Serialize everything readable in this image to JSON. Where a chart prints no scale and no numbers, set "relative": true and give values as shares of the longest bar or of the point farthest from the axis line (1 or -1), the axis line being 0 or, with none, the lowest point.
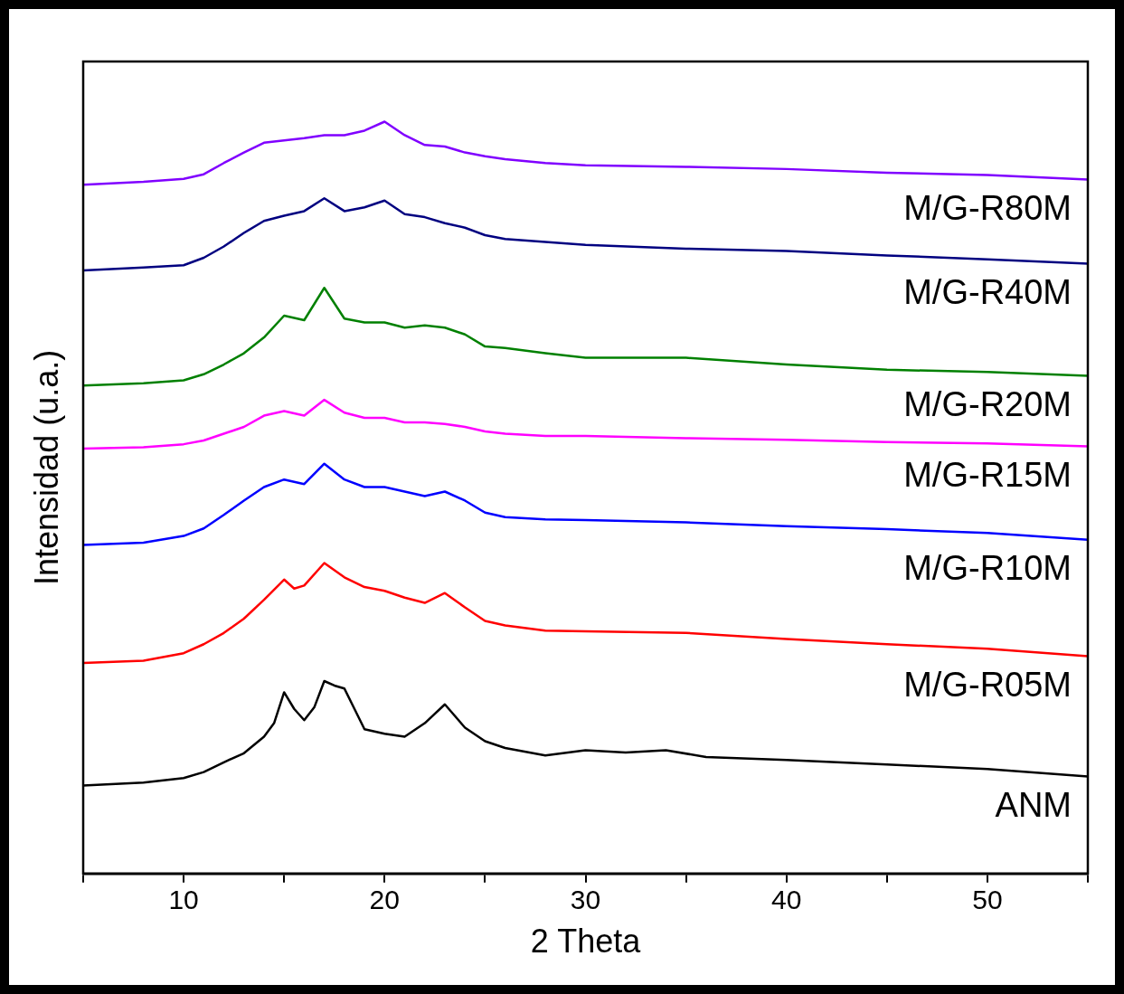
{
  "chart_data": {
    "type": "line",
    "xlabel": "2 Theta",
    "ylabel": "Intensidad (u.a.)",
    "relative": true,
    "xlim": [
      5,
      55
    ],
    "xticks": [
      {
        "value": 5,
        "label": null
      },
      10,
      {
        "value": 15,
        "label": null
      },
      20,
      {
        "value": 25,
        "label": null
      },
      30,
      {
        "value": 35,
        "label": null
      },
      40,
      {
        "value": 45,
        "label": null
      },
      50,
      {
        "value": 55,
        "label": null
      }
    ],
    "tick_labels": "x",
    "grid": false,
    "legend": false,
    "marker": "none",
    "line_style": "solid",
    "series": [
      {
        "name": "ANM",
        "color": "#000000",
        "x": [
          5,
          8,
          10,
          11,
          12,
          13,
          14,
          14.5,
          15,
          15.5,
          16,
          16.5,
          17,
          17.5,
          18,
          18.5,
          19,
          20,
          21,
          22,
          23,
          24,
          25,
          26,
          28,
          30,
          32,
          34,
          36,
          40,
          45,
          50,
          55
        ],
        "values": [
          0.117,
          0.121,
          0.127,
          0.135,
          0.148,
          0.16,
          0.182,
          0.2,
          0.241,
          0.219,
          0.204,
          0.221,
          0.256,
          0.25,
          0.246,
          0.219,
          0.192,
          0.186,
          0.182,
          0.2,
          0.225,
          0.194,
          0.176,
          0.167,
          0.157,
          0.164,
          0.161,
          0.164,
          0.155,
          0.151,
          0.145,
          0.139,
          0.129
        ]
      },
      {
        "name": "M/G-R05M",
        "color": "#ff0000",
        "x": [
          5,
          8,
          10,
          11,
          12,
          13,
          14,
          15,
          15.5,
          16,
          17,
          18,
          19,
          20,
          21,
          22,
          23,
          24,
          25,
          26,
          28,
          30,
          35,
          40,
          45,
          50,
          55
        ],
        "values": [
          0.28,
          0.283,
          0.293,
          0.305,
          0.32,
          0.339,
          0.364,
          0.391,
          0.379,
          0.383,
          0.413,
          0.394,
          0.381,
          0.376,
          0.367,
          0.36,
          0.373,
          0.354,
          0.336,
          0.33,
          0.323,
          0.322,
          0.32,
          0.312,
          0.305,
          0.299,
          0.289
        ]
      },
      {
        "name": "M/G-R10M",
        "color": "#0000ff",
        "x": [
          5,
          8,
          10,
          11,
          12,
          13,
          14,
          15,
          16,
          17,
          18,
          19,
          20,
          21,
          22,
          23,
          24,
          25,
          26,
          28,
          30,
          35,
          40,
          45,
          50,
          55
        ],
        "values": [
          0.437,
          0.44,
          0.449,
          0.459,
          0.477,
          0.496,
          0.514,
          0.524,
          0.518,
          0.545,
          0.524,
          0.514,
          0.514,
          0.508,
          0.502,
          0.508,
          0.496,
          0.48,
          0.474,
          0.471,
          0.47,
          0.467,
          0.462,
          0.458,
          0.453,
          0.444
        ]
      },
      {
        "name": "M/G-R15M",
        "color": "#ff00ff",
        "x": [
          5,
          8,
          10,
          11,
          12,
          13,
          14,
          15,
          16,
          17,
          18,
          19,
          20,
          21,
          22,
          23,
          24,
          25,
          26,
          28,
          30,
          35,
          40,
          45,
          50,
          55
        ],
        "values": [
          0.565,
          0.567,
          0.571,
          0.576,
          0.585,
          0.594,
          0.609,
          0.615,
          0.609,
          0.63,
          0.613,
          0.606,
          0.606,
          0.6,
          0.6,
          0.598,
          0.594,
          0.588,
          0.585,
          0.582,
          0.582,
          0.579,
          0.577,
          0.574,
          0.572,
          0.568
        ]
      },
      {
        "name": "M/G-R20M",
        "color": "#008000",
        "x": [
          5,
          8,
          10,
          11,
          12,
          13,
          14,
          15,
          16,
          17,
          18,
          19,
          20,
          21,
          22,
          23,
          24,
          25,
          26,
          28,
          30,
          35,
          40,
          45,
          50,
          55
        ],
        "values": [
          0.649,
          0.652,
          0.656,
          0.664,
          0.677,
          0.692,
          0.713,
          0.742,
          0.736,
          0.779,
          0.738,
          0.733,
          0.733,
          0.726,
          0.729,
          0.726,
          0.717,
          0.701,
          0.699,
          0.692,
          0.686,
          0.686,
          0.677,
          0.67,
          0.667,
          0.662
        ]
      },
      {
        "name": "M/G-R40M",
        "color": "#000080",
        "x": [
          5,
          8,
          10,
          11,
          12,
          13,
          14,
          15,
          16,
          17,
          18,
          19,
          20,
          21,
          22,
          23,
          24,
          25,
          26,
          28,
          30,
          35,
          40,
          45,
          50,
          55
        ],
        "values": [
          0.802,
          0.806,
          0.809,
          0.819,
          0.834,
          0.852,
          0.868,
          0.875,
          0.881,
          0.898,
          0.881,
          0.886,
          0.895,
          0.877,
          0.873,
          0.865,
          0.859,
          0.849,
          0.844,
          0.84,
          0.836,
          0.831,
          0.828,
          0.822,
          0.817,
          0.811
        ]
      },
      {
        "name": "M/G-R80M",
        "color": "#8000ff",
        "x": [
          5,
          8,
          10,
          11,
          12,
          13,
          14,
          15,
          16,
          17,
          18,
          19,
          20,
          21,
          22,
          23,
          24,
          25,
          26,
          28,
          30,
          35,
          40,
          45,
          50,
          55
        ],
        "values": [
          0.916,
          0.92,
          0.924,
          0.93,
          0.945,
          0.959,
          0.972,
          0.975,
          0.978,
          0.982,
          0.982,
          0.988,
          1,
          0.982,
          0.969,
          0.967,
          0.959,
          0.954,
          0.95,
          0.945,
          0.942,
          0.94,
          0.937,
          0.932,
          0.929,
          0.923
        ]
      }
    ]
  }
}
